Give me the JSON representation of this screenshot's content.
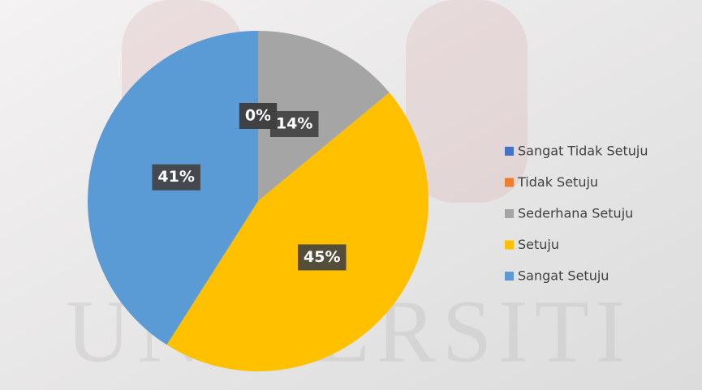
{
  "chart_data": {
    "type": "pie",
    "watermark": "UNIVERSITI",
    "categories": [
      "Sangat Tidak Setuju",
      "Tidak Setuju",
      "Sederhana Setuju",
      "Setuju",
      "Sangat Setuju"
    ],
    "values": [
      0,
      0,
      14,
      45,
      41
    ],
    "value_labels": [
      "0%",
      "0%",
      "14%",
      "45%",
      "41%"
    ],
    "colors": [
      "#4472c4",
      "#ed7d31",
      "#a5a5a5",
      "#ffc000",
      "#5b9bd5"
    ],
    "legend": "right"
  }
}
